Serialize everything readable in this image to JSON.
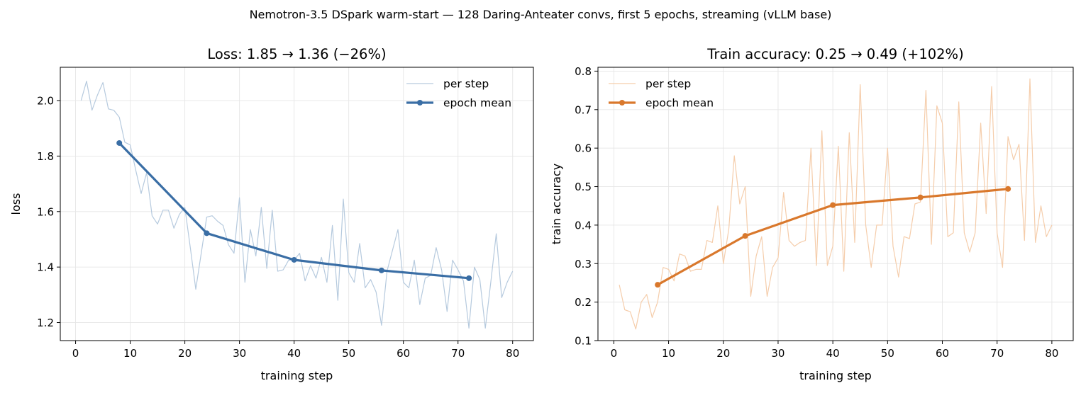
{
  "figure": {
    "suptitle": "Nemotron-3.5 DSpark warm-start — 128 Daring-Anteater convs, first 5 epochs, streaming (vLLM base)"
  },
  "chart_data": [
    {
      "type": "line",
      "title": "Loss: 1.85 → 1.36  (−26%)",
      "xlabel": "training step",
      "ylabel": "loss",
      "xlim": [
        -2.8,
        83.8
      ],
      "ylim": [
        1.135,
        2.12
      ],
      "xticks": [
        0,
        10,
        20,
        30,
        40,
        50,
        60,
        70,
        80
      ],
      "yticks": [
        1.2,
        1.4,
        1.6,
        1.8,
        2.0
      ],
      "ytick_labels": [
        "1.2",
        "1.4",
        "1.6",
        "1.8",
        "2.0"
      ],
      "grid": true,
      "legend": "top-right",
      "colors": {
        "per_step": "#b6cade",
        "epoch_mean": "#3a6ea5"
      },
      "series": [
        {
          "name": "per step",
          "style": "thin",
          "x": [
            1,
            2,
            3,
            4,
            5,
            6,
            7,
            8,
            9,
            10,
            11,
            12,
            13,
            14,
            15,
            16,
            17,
            18,
            19,
            20,
            21,
            22,
            23,
            24,
            25,
            26,
            27,
            28,
            29,
            30,
            31,
            32,
            33,
            34,
            35,
            36,
            37,
            38,
            39,
            40,
            41,
            42,
            43,
            44,
            45,
            46,
            47,
            48,
            49,
            50,
            51,
            52,
            53,
            54,
            55,
            56,
            57,
            58,
            59,
            60,
            61,
            62,
            63,
            64,
            65,
            66,
            67,
            68,
            69,
            70,
            71,
            72,
            73,
            74,
            75,
            76,
            77,
            78,
            79,
            80
          ],
          "y": [
            2.0,
            2.07,
            1.965,
            2.02,
            2.065,
            1.97,
            1.965,
            1.94,
            1.85,
            1.84,
            1.75,
            1.665,
            1.74,
            1.585,
            1.555,
            1.605,
            1.605,
            1.54,
            1.59,
            1.615,
            1.47,
            1.32,
            1.45,
            1.58,
            1.585,
            1.565,
            1.55,
            1.48,
            1.45,
            1.65,
            1.345,
            1.535,
            1.44,
            1.615,
            1.395,
            1.605,
            1.385,
            1.39,
            1.425,
            1.425,
            1.45,
            1.35,
            1.405,
            1.36,
            1.435,
            1.345,
            1.55,
            1.28,
            1.645,
            1.38,
            1.345,
            1.485,
            1.325,
            1.355,
            1.31,
            1.19,
            1.385,
            1.46,
            1.535,
            1.345,
            1.325,
            1.425,
            1.265,
            1.36,
            1.37,
            1.47,
            1.39,
            1.24,
            1.425,
            1.39,
            1.35,
            1.18,
            1.4,
            1.355,
            1.18,
            1.345,
            1.52,
            1.29,
            1.345,
            1.385
          ]
        },
        {
          "name": "epoch mean",
          "style": "thick-markers",
          "x": [
            8,
            24,
            40,
            56,
            72
          ],
          "y": [
            1.847,
            1.522,
            1.426,
            1.388,
            1.36
          ]
        }
      ]
    },
    {
      "type": "line",
      "title": "Train accuracy: 0.25 → 0.49  (+102%)",
      "xlabel": "training step",
      "ylabel": "train accuracy",
      "xlim": [
        -2.9,
        83.9
      ],
      "ylim": [
        0.1,
        0.81
      ],
      "xticks": [
        0,
        10,
        20,
        30,
        40,
        50,
        60,
        70,
        80
      ],
      "yticks": [
        0.1,
        0.2,
        0.3,
        0.4,
        0.5,
        0.6,
        0.7,
        0.8
      ],
      "ytick_labels": [
        "0.1",
        "0.2",
        "0.3",
        "0.4",
        "0.5",
        "0.6",
        "0.7",
        "0.8"
      ],
      "grid": true,
      "legend": "top-left",
      "colors": {
        "per_step": "#f5cdab",
        "epoch_mean": "#d9782c"
      },
      "series": [
        {
          "name": "per step",
          "style": "thin",
          "x": [
            1,
            2,
            3,
            4,
            5,
            6,
            7,
            8,
            9,
            10,
            11,
            12,
            13,
            14,
            15,
            16,
            17,
            18,
            19,
            20,
            21,
            22,
            23,
            24,
            25,
            26,
            27,
            28,
            29,
            30,
            31,
            32,
            33,
            34,
            35,
            36,
            37,
            38,
            39,
            40,
            41,
            42,
            43,
            44,
            45,
            46,
            47,
            48,
            49,
            50,
            51,
            52,
            53,
            54,
            55,
            56,
            57,
            58,
            59,
            60,
            61,
            62,
            63,
            64,
            65,
            66,
            67,
            68,
            69,
            70,
            71,
            72,
            73,
            74,
            75,
            76,
            77,
            78,
            79,
            80
          ],
          "y": [
            0.245,
            0.18,
            0.175,
            0.13,
            0.2,
            0.22,
            0.16,
            0.2,
            0.29,
            0.285,
            0.255,
            0.325,
            0.32,
            0.28,
            0.285,
            0.285,
            0.36,
            0.355,
            0.45,
            0.3,
            0.39,
            0.58,
            0.455,
            0.5,
            0.215,
            0.32,
            0.37,
            0.215,
            0.29,
            0.315,
            0.485,
            0.36,
            0.345,
            0.355,
            0.36,
            0.6,
            0.295,
            0.645,
            0.295,
            0.345,
            0.605,
            0.28,
            0.64,
            0.355,
            0.765,
            0.4,
            0.29,
            0.4,
            0.4,
            0.6,
            0.345,
            0.265,
            0.37,
            0.365,
            0.455,
            0.46,
            0.75,
            0.35,
            0.71,
            0.665,
            0.37,
            0.38,
            0.72,
            0.38,
            0.33,
            0.38,
            0.665,
            0.43,
            0.76,
            0.38,
            0.29,
            0.63,
            0.57,
            0.61,
            0.36,
            0.78,
            0.355,
            0.45,
            0.37,
            0.4
          ]
        },
        {
          "name": "epoch mean",
          "style": "thick-markers",
          "x": [
            8,
            24,
            40,
            56,
            72
          ],
          "y": [
            0.245,
            0.372,
            0.452,
            0.472,
            0.494
          ]
        }
      ]
    }
  ]
}
